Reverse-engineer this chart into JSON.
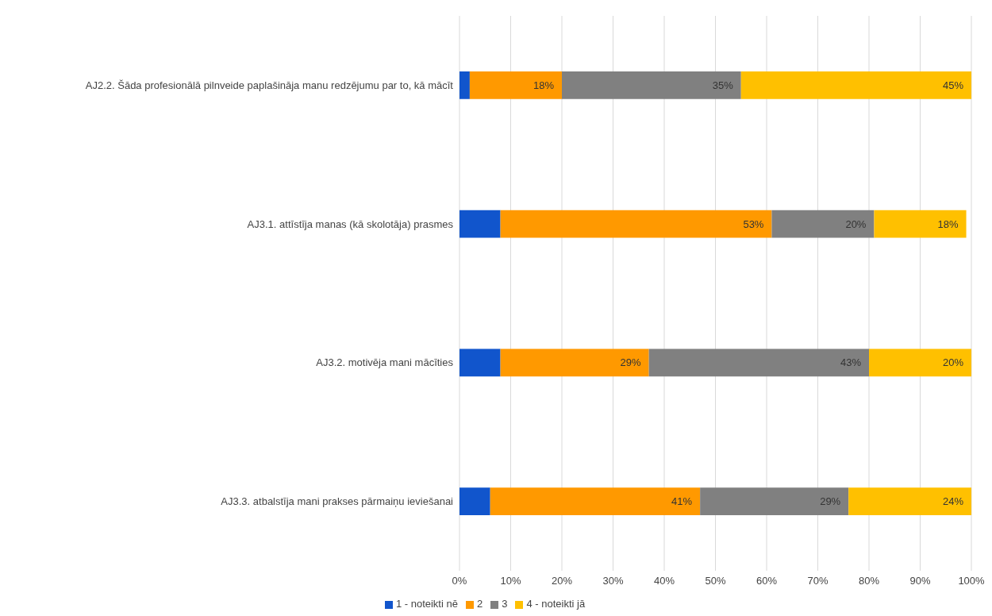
{
  "chart_data": {
    "type": "bar",
    "orientation": "horizontal",
    "stacked": true,
    "categories": [
      "AJ2.2. Šāda profesionālā pilnveide paplašināja manu redzējumu par to, kā mācīt",
      "AJ3.1. attīstīja manas (kā skolotāja) prasmes",
      "AJ3.2. motivēja mani mācīties",
      "AJ3.3. atbalstīja mani prakses pārmaiņu ieviešanai"
    ],
    "series": [
      {
        "name": "1 - noteikti nē",
        "color": "#1155cc",
        "values": [
          2,
          8,
          8,
          6
        ],
        "value_labels": [
          null,
          null,
          null,
          null
        ]
      },
      {
        "name": "2",
        "color": "#ff9900",
        "values": [
          18,
          53,
          29,
          41
        ],
        "value_labels": [
          "18%",
          "53%",
          "29%",
          "41%"
        ]
      },
      {
        "name": "3",
        "color": "#808080",
        "values": [
          35,
          20,
          43,
          29
        ],
        "value_labels": [
          "35%",
          "20%",
          "43%",
          "29%"
        ]
      },
      {
        "name": "4 - noteikti jā",
        "color": "#ffc000",
        "values": [
          45,
          18,
          20,
          24
        ],
        "value_labels": [
          "45%",
          "18%",
          "20%",
          "24%"
        ]
      }
    ],
    "xlim": [
      0,
      100
    ],
    "xticks": [
      {
        "value": 0,
        "label": "0%"
      },
      {
        "value": 10,
        "label": "10%"
      },
      {
        "value": 20,
        "label": "20%"
      },
      {
        "value": 30,
        "label": "30%"
      },
      {
        "value": 40,
        "label": "40%"
      },
      {
        "value": 50,
        "label": "50%"
      },
      {
        "value": 60,
        "label": "60%"
      },
      {
        "value": 70,
        "label": "70%"
      },
      {
        "value": 80,
        "label": "80%"
      },
      {
        "value": 90,
        "label": "90%"
      },
      {
        "value": 100,
        "label": "100%"
      }
    ],
    "grid": "x",
    "legend": "bottom"
  }
}
